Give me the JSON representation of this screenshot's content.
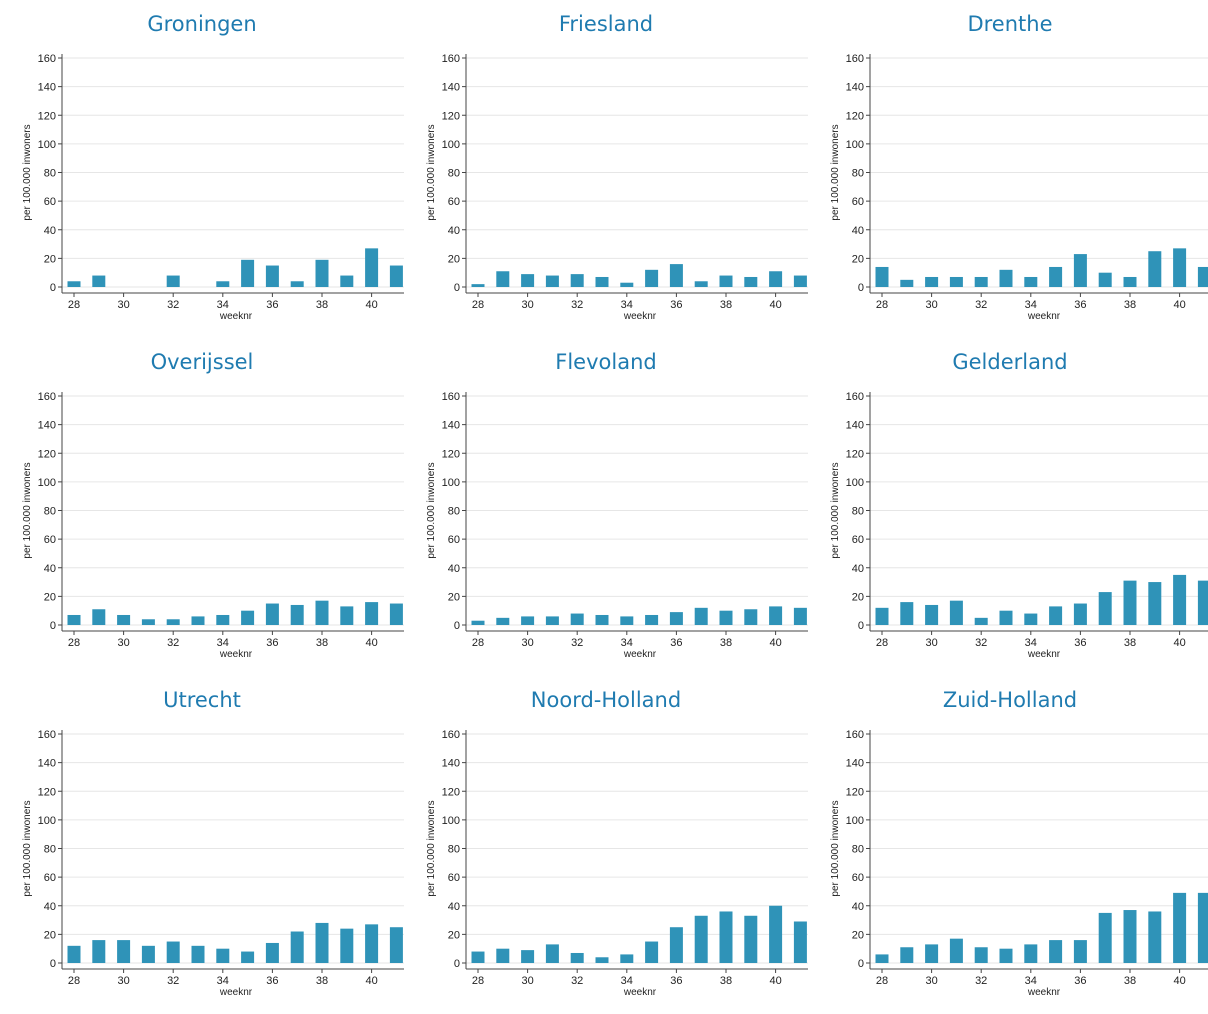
{
  "colors": {
    "bar": "#2f93b8",
    "title": "#1f7bb0",
    "grid": "#e6e6e6",
    "axis": "#444444"
  },
  "chart_data": [
    {
      "type": "bar",
      "title": "Groningen",
      "xlabel": "weeknr",
      "ylabel": "per 100.000 inwoners",
      "ylim": [
        0,
        160
      ],
      "categories": [
        28,
        29,
        30,
        31,
        32,
        33,
        34,
        35,
        36,
        37,
        38,
        39,
        40,
        41
      ],
      "values": [
        4,
        8,
        0,
        0,
        8,
        0,
        4,
        19,
        15,
        4,
        19,
        8,
        27,
        15
      ]
    },
    {
      "type": "bar",
      "title": "Friesland",
      "xlabel": "weeknr",
      "ylabel": "per 100.000 inwoners",
      "ylim": [
        0,
        160
      ],
      "categories": [
        28,
        29,
        30,
        31,
        32,
        33,
        34,
        35,
        36,
        37,
        38,
        39,
        40,
        41
      ],
      "values": [
        2,
        11,
        9,
        8,
        9,
        7,
        3,
        12,
        16,
        4,
        8,
        7,
        11,
        8
      ]
    },
    {
      "type": "bar",
      "title": "Drenthe",
      "xlabel": "weeknr",
      "ylabel": "per 100.000 inwoners",
      "ylim": [
        0,
        160
      ],
      "categories": [
        28,
        29,
        30,
        31,
        32,
        33,
        34,
        35,
        36,
        37,
        38,
        39,
        40,
        41
      ],
      "values": [
        14,
        5,
        7,
        7,
        7,
        12,
        7,
        14,
        23,
        10,
        7,
        25,
        27,
        14
      ]
    },
    {
      "type": "bar",
      "title": "Overijssel",
      "xlabel": "weeknr",
      "ylabel": "per 100.000 inwoners",
      "ylim": [
        0,
        160
      ],
      "categories": [
        28,
        29,
        30,
        31,
        32,
        33,
        34,
        35,
        36,
        37,
        38,
        39,
        40,
        41
      ],
      "values": [
        7,
        11,
        7,
        4,
        4,
        6,
        7,
        10,
        15,
        14,
        17,
        13,
        16,
        15
      ]
    },
    {
      "type": "bar",
      "title": "Flevoland",
      "xlabel": "weeknr",
      "ylabel": "per 100.000 inwoners",
      "ylim": [
        0,
        160
      ],
      "categories": [
        28,
        29,
        30,
        31,
        32,
        33,
        34,
        35,
        36,
        37,
        38,
        39,
        40,
        41
      ],
      "values": [
        3,
        5,
        6,
        6,
        8,
        7,
        6,
        7,
        9,
        12,
        10,
        11,
        13,
        12
      ]
    },
    {
      "type": "bar",
      "title": "Gelderland",
      "xlabel": "weeknr",
      "ylabel": "per 100.000 inwoners",
      "ylim": [
        0,
        160
      ],
      "categories": [
        28,
        29,
        30,
        31,
        32,
        33,
        34,
        35,
        36,
        37,
        38,
        39,
        40,
        41
      ],
      "values": [
        12,
        16,
        14,
        17,
        5,
        10,
        8,
        13,
        15,
        23,
        31,
        30,
        35,
        31
      ]
    },
    {
      "type": "bar",
      "title": "Utrecht",
      "xlabel": "weeknr",
      "ylabel": "per 100.000 inwoners",
      "ylim": [
        0,
        160
      ],
      "categories": [
        28,
        29,
        30,
        31,
        32,
        33,
        34,
        35,
        36,
        37,
        38,
        39,
        40,
        41
      ],
      "values": [
        12,
        16,
        16,
        12,
        15,
        12,
        10,
        8,
        14,
        22,
        28,
        24,
        27,
        25
      ]
    },
    {
      "type": "bar",
      "title": "Noord-Holland",
      "xlabel": "weeknr",
      "ylabel": "per 100.000 inwoners",
      "ylim": [
        0,
        160
      ],
      "categories": [
        28,
        29,
        30,
        31,
        32,
        33,
        34,
        35,
        36,
        37,
        38,
        39,
        40,
        41
      ],
      "values": [
        8,
        10,
        9,
        13,
        7,
        4,
        6,
        15,
        25,
        33,
        36,
        33,
        40,
        29
      ]
    },
    {
      "type": "bar",
      "title": "Zuid-Holland",
      "xlabel": "weeknr",
      "ylabel": "per 100.000 inwoners",
      "ylim": [
        0,
        160
      ],
      "categories": [
        28,
        29,
        30,
        31,
        32,
        33,
        34,
        35,
        36,
        37,
        38,
        39,
        40,
        41
      ],
      "values": [
        6,
        11,
        13,
        17,
        11,
        10,
        13,
        16,
        16,
        35,
        37,
        36,
        49,
        49
      ]
    }
  ],
  "axes": {
    "y_ticks": [
      0,
      20,
      40,
      60,
      80,
      100,
      120,
      140,
      160
    ],
    "x_ticks": [
      28,
      30,
      32,
      34,
      36,
      38,
      40
    ]
  }
}
